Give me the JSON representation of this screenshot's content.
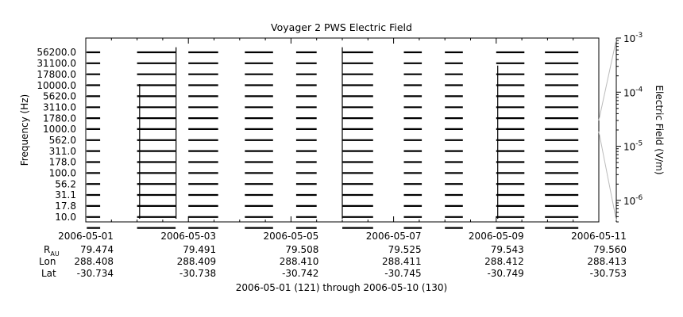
{
  "chart_data": {
    "type": "line",
    "title": "Voyager 2 PWS Electric Field",
    "xlabel": "2006-05-01 (121) through 2006-05-10 (130)",
    "ylabel": "Frequency (Hz)",
    "colorbar_label": "Electric Field (V/m)",
    "x_ticks": [
      "2006-05-01",
      "2006-05-03",
      "2006-05-05",
      "2006-05-07",
      "2006-05-09",
      "2006-05-11"
    ],
    "x_range": [
      "2006-05-01",
      "2006-05-11"
    ],
    "frequency_channels": [
      "10.0",
      "17.8",
      "31.1",
      "56.2",
      "100.0",
      "178.0",
      "311.0",
      "562.0",
      "1000.0",
      "1780.0",
      "3110.0",
      "5620.0",
      "10000.0",
      "17800.0",
      "31100.0",
      "56200.0"
    ],
    "y_tick_labels": [
      "10.0",
      "17.8",
      "31.1",
      "56.2",
      "100.0",
      "178.0",
      "311.0",
      "562.0",
      "1000.0",
      "1780.0",
      "3110.0",
      "5620.0",
      "10000.0",
      "17800.0",
      "31100.0",
      "56200.0"
    ],
    "colorbar": {
      "scale": "log",
      "range": [
        4e-07,
        0.001
      ],
      "ticks": [
        {
          "value": 0.001,
          "mantissa": "10",
          "exp": "-3"
        },
        {
          "value": 0.0001,
          "mantissa": "10",
          "exp": "-4"
        },
        {
          "value": 1e-05,
          "mantissa": "10",
          "exp": "-5"
        },
        {
          "value": 1e-06,
          "mantissa": "10",
          "exp": "-6"
        }
      ]
    },
    "data_intervals": [
      {
        "start": 0.02,
        "end": 0.28
      },
      {
        "start": 1.0,
        "end": 1.75
      },
      {
        "start": 2.0,
        "end": 2.58
      },
      {
        "start": 3.1,
        "end": 3.65
      },
      {
        "start": 4.1,
        "end": 4.5
      },
      {
        "start": 5.0,
        "end": 5.6
      },
      {
        "start": 6.2,
        "end": 6.55
      },
      {
        "start": 7.0,
        "end": 7.35
      },
      {
        "start": 8.0,
        "end": 8.55
      },
      {
        "start": 8.95,
        "end": 9.6
      }
    ],
    "spikes": [
      {
        "day": 1.05,
        "level": 0.75
      },
      {
        "day": 1.76,
        "level": 0.95
      },
      {
        "day": 5.0,
        "level": 0.95
      },
      {
        "day": 8.03,
        "level": 0.85
      }
    ],
    "ephemeris": {
      "labels": {
        "r_main": "R",
        "r_sub": "AU",
        "lon": "Lon",
        "lat": "Lat"
      },
      "r_au": [
        "79.474",
        "79.491",
        "79.508",
        "79.525",
        "79.543",
        "79.560"
      ],
      "lon": [
        "288.408",
        "288.409",
        "288.410",
        "288.411",
        "288.412",
        "288.413"
      ],
      "lat": [
        "-30.734",
        "-30.738",
        "-30.742",
        "-30.745",
        "-30.749",
        "-30.753"
      ]
    },
    "grid": false
  }
}
